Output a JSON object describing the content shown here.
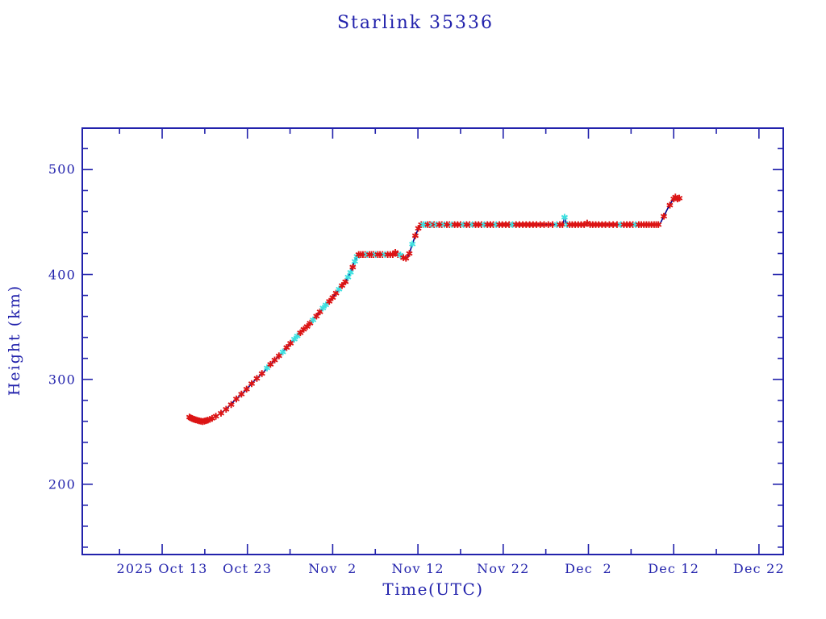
{
  "window": {
    "background": "#ffffff"
  },
  "chart_data": {
    "type": "line",
    "title": "Starlink 35336",
    "xlabel": "Time(UTC)",
    "ylabel": "Height (km)",
    "legend": "none",
    "grid": "off",
    "x_unit_note": "days relative to 2025 Oct 13 00:00 UTC",
    "x_range": [
      -9.37,
      72.85
    ],
    "y_range": [
      133,
      539.5
    ],
    "x_major_ticks": [
      {
        "t": 0,
        "label": "2025 Oct 13"
      },
      {
        "t": 10,
        "label": "Oct 23"
      },
      {
        "t": 20,
        "label": "Nov  2"
      },
      {
        "t": 30,
        "label": "Nov 12"
      },
      {
        "t": 40,
        "label": "Nov 22"
      },
      {
        "t": 50,
        "label": "Dec  2"
      },
      {
        "t": 60,
        "label": "Dec 12"
      },
      {
        "t": 70,
        "label": "Dec 22"
      }
    ],
    "x_minor_ticks": [
      -5,
      5,
      15,
      25,
      35,
      45,
      55,
      65
    ],
    "y_major_ticks": [
      {
        "v": 200,
        "label": "200"
      },
      {
        "v": 300,
        "label": "300"
      },
      {
        "v": 400,
        "label": "400"
      },
      {
        "v": 500,
        "label": "500"
      }
    ],
    "y_minor_ticks": [
      140,
      160,
      180,
      220,
      240,
      260,
      280,
      320,
      340,
      360,
      380,
      420,
      440,
      460,
      480,
      520
    ],
    "colors": {
      "axis": "#2222ac",
      "text": "#2222ac",
      "line": "#00008b",
      "red_marker": "#dc1414",
      "cyan_marker": "#3fe0e0"
    },
    "marker_styles": {
      "0": "red asterisk",
      "1": "cyan asterisk"
    },
    "line_points": [
      [
        3.2,
        264
      ],
      [
        3.6,
        262.2
      ],
      [
        4.1,
        260.6
      ],
      [
        4.7,
        259.8
      ],
      [
        5.3,
        261
      ],
      [
        5.9,
        263
      ],
      [
        6.6,
        266.2
      ],
      [
        7.5,
        271.5
      ],
      [
        8.4,
        279
      ],
      [
        9.7,
        289
      ],
      [
        10.8,
        298.5
      ],
      [
        11.9,
        307
      ],
      [
        12.9,
        316
      ],
      [
        13.9,
        324
      ],
      [
        14.9,
        333
      ],
      [
        15.8,
        341
      ],
      [
        16.9,
        349.5
      ],
      [
        17.9,
        358.5
      ],
      [
        18.8,
        367.5
      ],
      [
        19.8,
        376
      ],
      [
        20.7,
        385.5
      ],
      [
        21.5,
        393
      ],
      [
        22.1,
        402
      ],
      [
        22.5,
        411
      ],
      [
        22.9,
        418.3
      ],
      [
        23.2,
        419
      ],
      [
        27.2,
        419
      ],
      [
        27.45,
        421.5
      ],
      [
        27.7,
        419
      ],
      [
        28.0,
        418.5
      ],
      [
        28.3,
        416
      ],
      [
        28.7,
        415.5
      ],
      [
        29.0,
        420
      ],
      [
        29.35,
        429
      ],
      [
        29.7,
        437
      ],
      [
        30.1,
        444.5
      ],
      [
        30.45,
        447.5
      ],
      [
        47.0,
        447.5
      ],
      [
        47.2,
        454.5
      ],
      [
        47.45,
        447.5
      ],
      [
        49.7,
        447.5
      ],
      [
        49.9,
        449.5
      ],
      [
        50.1,
        447.5
      ],
      [
        58.35,
        447.5
      ],
      [
        58.85,
        455.5
      ],
      [
        59.3,
        463
      ],
      [
        59.8,
        470
      ],
      [
        60.1,
        473.8
      ],
      [
        60.4,
        472
      ],
      [
        60.7,
        472.8
      ]
    ],
    "markers": [
      [
        3.2,
        264,
        0
      ],
      [
        3.35,
        263.3,
        0
      ],
      [
        3.5,
        262.7,
        0
      ],
      [
        3.65,
        262.2,
        0
      ],
      [
        3.8,
        261.8,
        0
      ],
      [
        3.95,
        261.4,
        0
      ],
      [
        4.15,
        260.9,
        0
      ],
      [
        4.35,
        260.4,
        0
      ],
      [
        4.55,
        260.1,
        0
      ],
      [
        4.75,
        259.8,
        0
      ],
      [
        4.95,
        260.2,
        0
      ],
      [
        5.15,
        260.6,
        0
      ],
      [
        5.35,
        261.1,
        0
      ],
      [
        5.6,
        261.9,
        0
      ],
      [
        5.85,
        262.8,
        0
      ],
      [
        6.3,
        264.9,
        0
      ],
      [
        6.9,
        267.7,
        0
      ],
      [
        7.5,
        271.5,
        0
      ],
      [
        8.1,
        275.9,
        0
      ],
      [
        8.7,
        281.3,
        0
      ],
      [
        9.3,
        285.9,
        0
      ],
      [
        9.9,
        290.7,
        0
      ],
      [
        10.5,
        295.9,
        0
      ],
      [
        11.1,
        300.9,
        0
      ],
      [
        11.7,
        305.5,
        0
      ],
      [
        12.3,
        310.9,
        1
      ],
      [
        12.7,
        314.3,
        0
      ],
      [
        13.2,
        318.4,
        0
      ],
      [
        13.7,
        322.4,
        0
      ],
      [
        14.15,
        326.1,
        1
      ],
      [
        14.6,
        330.3,
        0
      ],
      [
        15.05,
        334.4,
        0
      ],
      [
        15.5,
        338.3,
        1
      ],
      [
        15.85,
        341.4,
        1
      ],
      [
        16.2,
        344.4,
        0
      ],
      [
        16.6,
        347.7,
        0
      ],
      [
        17.0,
        350.4,
        0
      ],
      [
        17.35,
        353.6,
        0
      ],
      [
        17.7,
        356.7,
        1
      ],
      [
        18.1,
        360.3,
        0
      ],
      [
        18.5,
        364.4,
        0
      ],
      [
        18.85,
        368,
        1
      ],
      [
        19.2,
        371,
        1
      ],
      [
        19.6,
        374.4,
        0
      ],
      [
        20.0,
        378,
        0
      ],
      [
        20.4,
        382.2,
        0
      ],
      [
        20.75,
        386,
        1
      ],
      [
        21.1,
        389.4,
        0
      ],
      [
        21.5,
        393,
        0
      ],
      [
        21.8,
        397.5,
        1
      ],
      [
        22.1,
        402,
        1
      ],
      [
        22.35,
        407,
        0
      ],
      [
        22.6,
        412.5,
        1
      ],
      [
        22.85,
        417.2,
        1
      ],
      [
        23.05,
        419,
        0
      ],
      [
        23.3,
        419,
        0
      ],
      [
        23.55,
        419,
        0
      ],
      [
        23.8,
        419,
        0
      ],
      [
        24.05,
        419,
        1
      ],
      [
        24.3,
        419,
        0
      ],
      [
        24.55,
        419,
        0
      ],
      [
        24.8,
        419,
        0
      ],
      [
        25.05,
        419,
        1
      ],
      [
        25.3,
        419,
        0
      ],
      [
        25.55,
        419,
        0
      ],
      [
        25.85,
        419,
        0
      ],
      [
        26.15,
        419,
        1
      ],
      [
        26.45,
        419,
        0
      ],
      [
        26.75,
        419,
        0
      ],
      [
        27.05,
        419,
        0
      ],
      [
        27.35,
        421,
        0
      ],
      [
        27.65,
        419,
        0
      ],
      [
        27.95,
        418.5,
        1
      ],
      [
        28.3,
        416,
        0
      ],
      [
        28.6,
        415.5,
        0
      ],
      [
        29.0,
        420,
        0
      ],
      [
        29.35,
        429,
        1
      ],
      [
        29.7,
        437,
        0
      ],
      [
        30.05,
        444,
        0
      ],
      [
        30.4,
        447.5,
        0
      ],
      [
        30.65,
        447.5,
        1
      ],
      [
        30.9,
        447.5,
        1
      ],
      [
        31.15,
        447.5,
        0
      ],
      [
        31.4,
        447.5,
        0
      ],
      [
        31.65,
        447.5,
        1
      ],
      [
        31.9,
        447.5,
        0
      ],
      [
        32.2,
        447.5,
        1
      ],
      [
        32.5,
        447.5,
        0
      ],
      [
        32.8,
        447.5,
        0
      ],
      [
        33.1,
        447.5,
        1
      ],
      [
        33.4,
        447.5,
        0
      ],
      [
        33.7,
        447.5,
        0
      ],
      [
        34.0,
        447.5,
        1
      ],
      [
        34.3,
        447.5,
        0
      ],
      [
        34.65,
        447.5,
        0
      ],
      [
        35.0,
        447.5,
        0
      ],
      [
        35.35,
        447.5,
        1
      ],
      [
        35.7,
        447.5,
        0
      ],
      [
        36.05,
        447.5,
        0
      ],
      [
        36.4,
        447.5,
        1
      ],
      [
        36.75,
        447.5,
        0
      ],
      [
        37.1,
        447.5,
        0
      ],
      [
        37.45,
        447.5,
        0
      ],
      [
        37.8,
        447.5,
        1
      ],
      [
        38.15,
        447.5,
        0
      ],
      [
        38.5,
        447.5,
        0
      ],
      [
        38.85,
        447.5,
        0
      ],
      [
        39.2,
        447.5,
        1
      ],
      [
        39.55,
        447.5,
        0
      ],
      [
        39.9,
        447.5,
        0
      ],
      [
        40.3,
        447.5,
        0
      ],
      [
        40.7,
        447.5,
        0
      ],
      [
        41.1,
        447.5,
        1
      ],
      [
        41.5,
        447.5,
        0
      ],
      [
        41.9,
        447.5,
        0
      ],
      [
        42.3,
        447.5,
        0
      ],
      [
        42.7,
        447.5,
        0
      ],
      [
        43.1,
        447.5,
        0
      ],
      [
        43.5,
        447.5,
        0
      ],
      [
        43.9,
        447.5,
        0
      ],
      [
        44.35,
        447.5,
        0
      ],
      [
        44.8,
        447.5,
        0
      ],
      [
        45.3,
        447.5,
        0
      ],
      [
        45.8,
        447.5,
        0
      ],
      [
        46.3,
        447.5,
        1
      ],
      [
        46.65,
        447.5,
        0
      ],
      [
        46.95,
        447.5,
        0
      ],
      [
        47.2,
        454.5,
        1
      ],
      [
        47.5,
        447.5,
        1
      ],
      [
        47.8,
        447.5,
        0
      ],
      [
        48.1,
        447.5,
        0
      ],
      [
        48.45,
        447.5,
        0
      ],
      [
        48.8,
        447.5,
        0
      ],
      [
        49.15,
        447.5,
        0
      ],
      [
        49.5,
        447.5,
        0
      ],
      [
        49.85,
        449,
        0
      ],
      [
        50.2,
        447.5,
        0
      ],
      [
        50.5,
        447.5,
        0
      ],
      [
        50.85,
        447.5,
        0
      ],
      [
        51.2,
        447.5,
        0
      ],
      [
        51.6,
        447.5,
        0
      ],
      [
        52.0,
        447.5,
        0
      ],
      [
        52.45,
        447.5,
        0
      ],
      [
        52.9,
        447.5,
        0
      ],
      [
        53.35,
        447.5,
        0
      ],
      [
        53.8,
        447.5,
        1
      ],
      [
        54.15,
        447.5,
        0
      ],
      [
        54.5,
        447.5,
        0
      ],
      [
        54.85,
        447.5,
        0
      ],
      [
        55.2,
        447.5,
        0
      ],
      [
        55.55,
        447.5,
        1
      ],
      [
        55.9,
        447.5,
        0
      ],
      [
        56.2,
        447.5,
        0
      ],
      [
        56.5,
        447.5,
        0
      ],
      [
        56.8,
        447.5,
        0
      ],
      [
        57.1,
        447.5,
        0
      ],
      [
        57.4,
        447.5,
        0
      ],
      [
        57.7,
        447.5,
        0
      ],
      [
        57.95,
        447.5,
        0
      ],
      [
        58.2,
        447.5,
        0
      ],
      [
        58.85,
        455.5,
        0
      ],
      [
        59.55,
        466,
        0
      ],
      [
        60.0,
        472,
        0
      ],
      [
        60.2,
        473.8,
        0
      ],
      [
        60.45,
        472,
        0
      ],
      [
        60.65,
        472.8,
        0
      ]
    ]
  }
}
